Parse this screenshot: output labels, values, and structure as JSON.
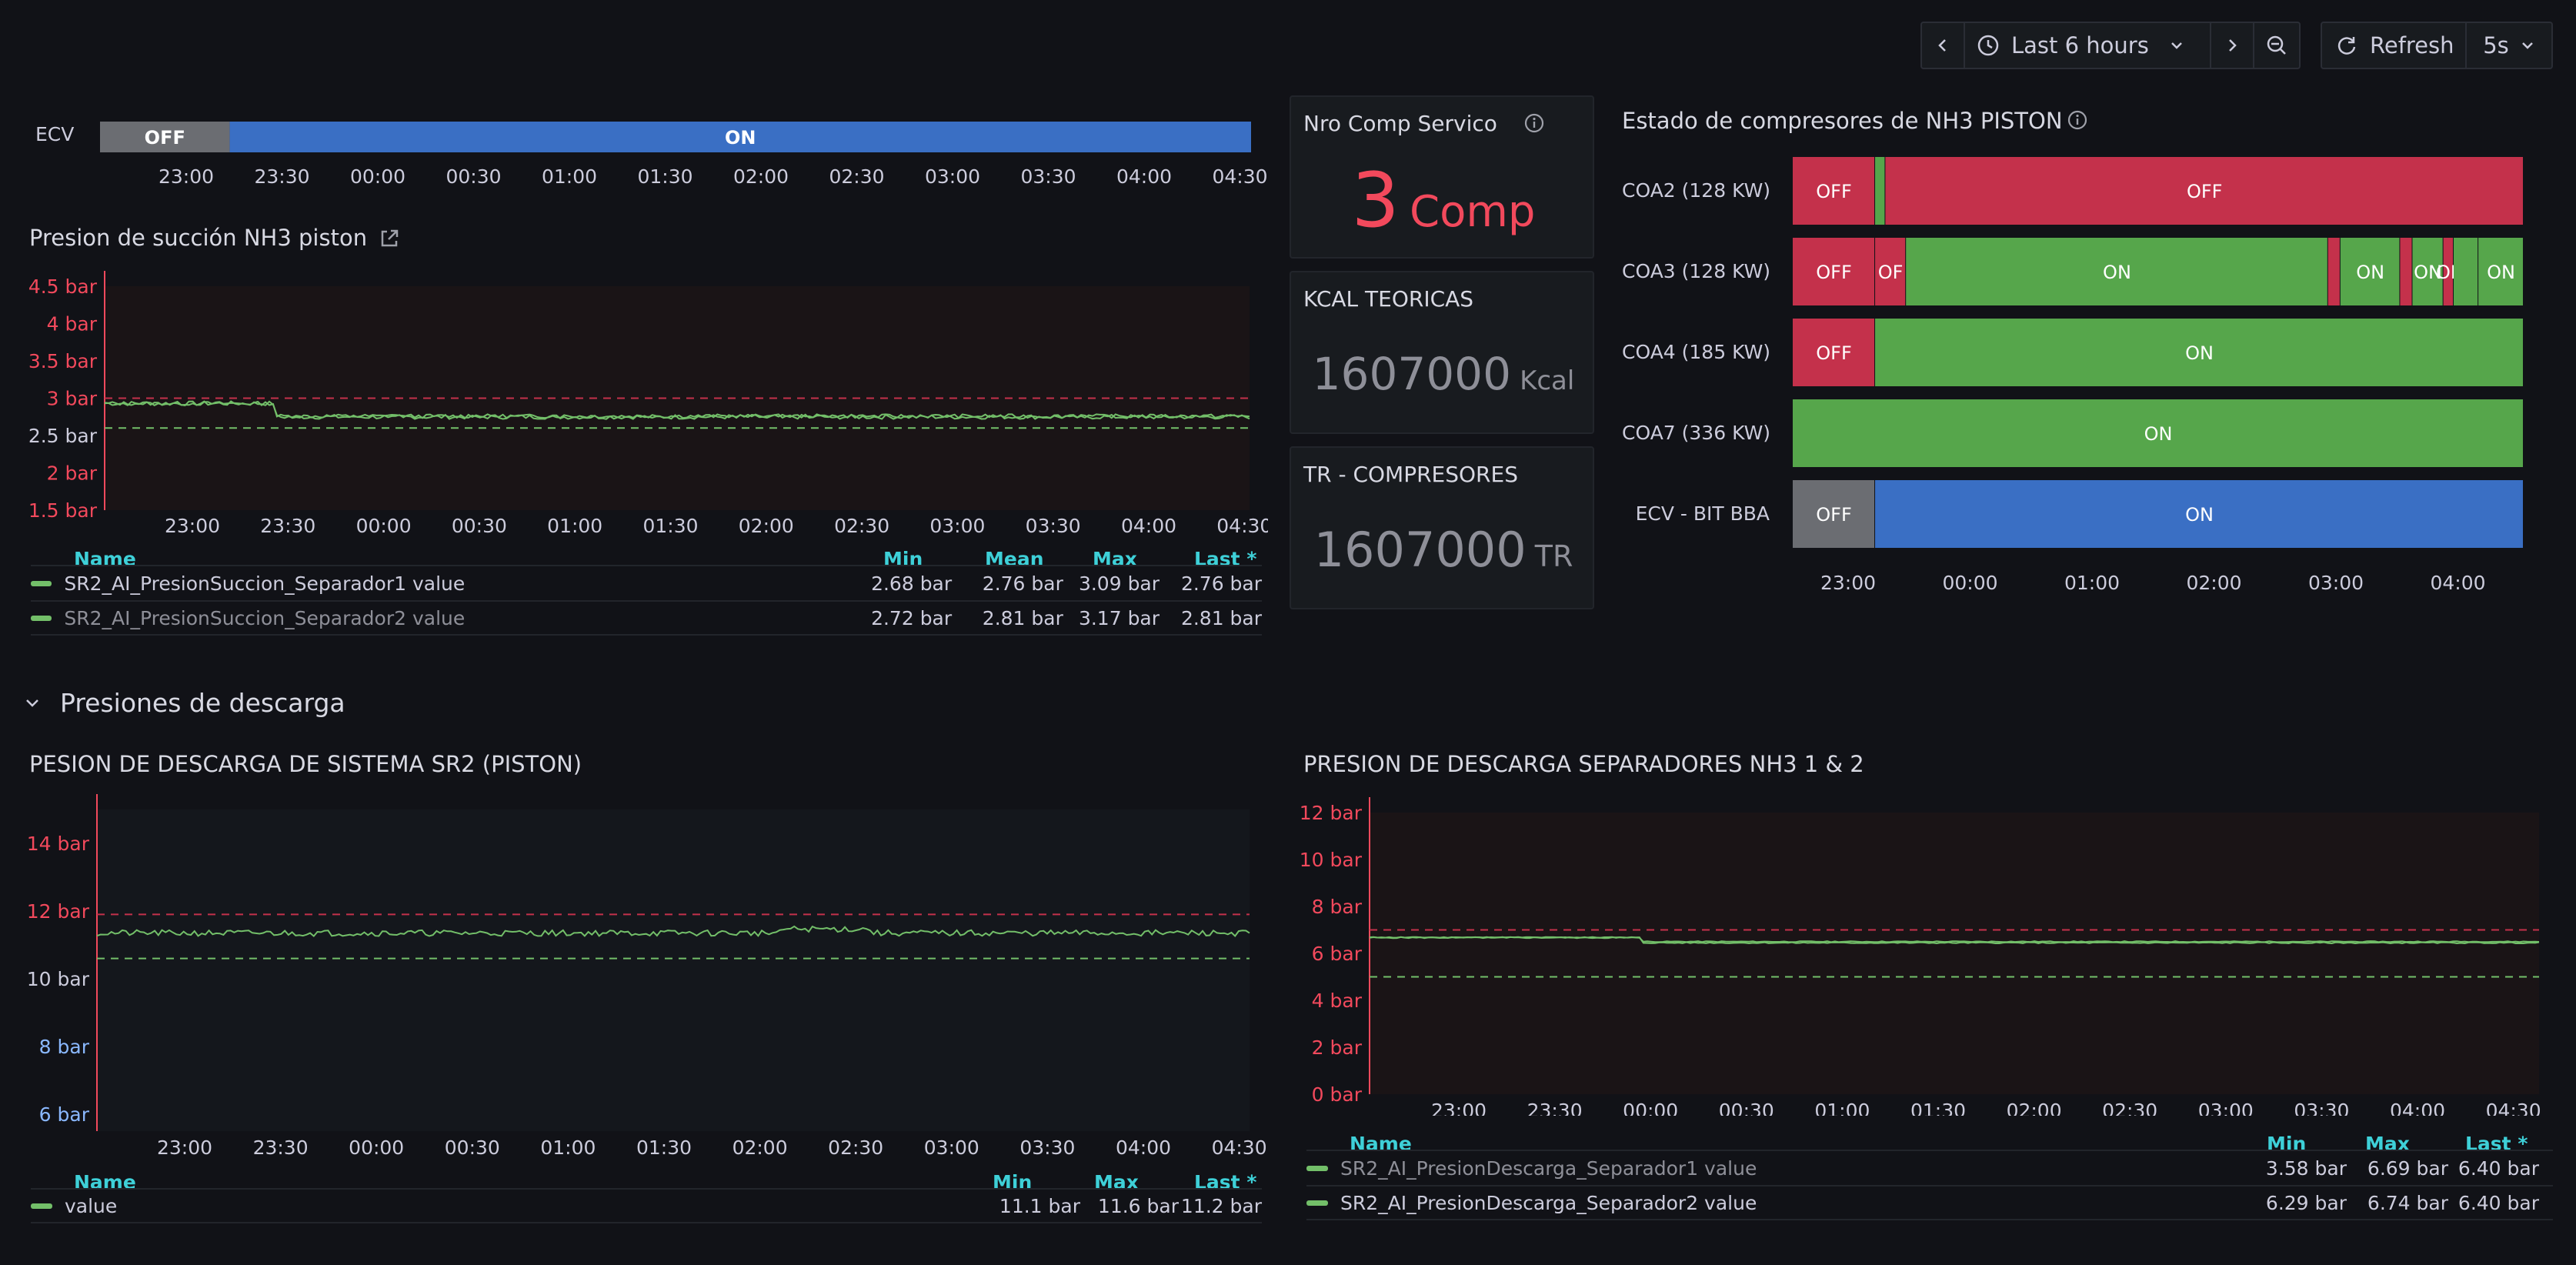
{
  "toolbar": {
    "time_range_label": "Last 6 hours",
    "refresh_label": "Refresh",
    "refresh_interval": "5s"
  },
  "ecv_timeline": {
    "label": "ECV",
    "segments": [
      {
        "state": "OFF",
        "from": "22:40",
        "to": "23:20"
      },
      {
        "state": "ON",
        "from": "23:20",
        "to": "04:35"
      }
    ],
    "ticks": [
      "23:00",
      "23:30",
      "00:00",
      "00:30",
      "01:00",
      "01:30",
      "02:00",
      "02:30",
      "03:00",
      "03:30",
      "04:00",
      "04:30"
    ]
  },
  "suction_panel": {
    "title": "Presion de succión NH3 piston",
    "y_ticks": [
      "4.5 bar",
      "4 bar",
      "3.5 bar",
      "3 bar",
      "2.5 bar",
      "2 bar",
      "1.5 bar"
    ],
    "x_ticks": [
      "23:00",
      "23:30",
      "00:00",
      "00:30",
      "01:00",
      "01:30",
      "02:00",
      "02:30",
      "03:00",
      "03:30",
      "04:00",
      "04:30"
    ],
    "legend_headers": {
      "name": "Name",
      "min": "Min",
      "mean": "Mean",
      "max": "Max",
      "last": "Last *"
    },
    "legend": [
      {
        "name": "SR2_AI_PresionSuccion_Separador1 value",
        "min": "2.68 bar",
        "mean": "2.76 bar",
        "max": "3.09 bar",
        "last": "2.76 bar"
      },
      {
        "name": "SR2_AI_PresionSuccion_Separador2 value",
        "min": "2.72 bar",
        "mean": "2.81 bar",
        "max": "3.17 bar",
        "last": "2.81 bar"
      }
    ]
  },
  "stat_comp": {
    "title": "Nro Comp Servico",
    "value": "3",
    "unit": "Comp",
    "color": "#f2495c"
  },
  "stat_kcal": {
    "title": "KCAL TEORICAS",
    "value": "1607000",
    "unit": "Kcal"
  },
  "stat_tr": {
    "title": "TR - COMPRESORES",
    "value": "1607000",
    "unit": "TR"
  },
  "state_panel": {
    "title": "Estado de compresores de NH3 PISTON",
    "x_ticks": [
      "23:00",
      "00:00",
      "01:00",
      "02:00",
      "03:00",
      "04:00"
    ],
    "rows": [
      {
        "label": "COA2 (128 KW)",
        "segments": [
          {
            "state": "OFF",
            "from": "22:40",
            "to": "23:20",
            "text": "OFF"
          },
          {
            "state": "ON",
            "from": "23:20",
            "to": "23:25",
            "text": ""
          },
          {
            "state": "OFF",
            "from": "23:25",
            "to": "04:35",
            "text": "OFF"
          }
        ]
      },
      {
        "label": "COA3 (128 KW)",
        "segments": [
          {
            "state": "OFF",
            "from": "22:40",
            "to": "23:20",
            "text": "OFF"
          },
          {
            "state": "OFF",
            "from": "23:20",
            "to": "23:35",
            "text": "OF"
          },
          {
            "state": "ON",
            "from": "23:35",
            "to": "03:00",
            "text": "ON"
          },
          {
            "state": "OFF",
            "from": "03:00",
            "to": "03:06",
            "text": ""
          },
          {
            "state": "ON",
            "from": "03:06",
            "to": "03:35",
            "text": "ON"
          },
          {
            "state": "OFF",
            "from": "03:35",
            "to": "03:41",
            "text": ""
          },
          {
            "state": "ON",
            "from": "03:41",
            "to": "03:56",
            "text": "ON"
          },
          {
            "state": "OFF",
            "from": "03:56",
            "to": "04:01",
            "text": "OF"
          },
          {
            "state": "ON",
            "from": "04:01",
            "to": "04:13",
            "text": ""
          },
          {
            "state": "ON",
            "from": "04:13",
            "to": "04:35",
            "text": "ON"
          }
        ]
      },
      {
        "label": "COA4 (185 KW)",
        "segments": [
          {
            "state": "OFF",
            "from": "22:40",
            "to": "23:20",
            "text": "OFF"
          },
          {
            "state": "ON",
            "from": "23:20",
            "to": "04:35",
            "text": "ON"
          }
        ]
      },
      {
        "label": "COA7 (336 KW)",
        "segments": [
          {
            "state": "ON",
            "from": "22:40",
            "to": "04:35",
            "text": "ON"
          }
        ]
      },
      {
        "label": "ECV - BIT BBA",
        "segments": [
          {
            "state": "NONE",
            "from": "22:40",
            "to": "23:20",
            "text": "OFF"
          },
          {
            "state": "BLUE",
            "from": "23:20",
            "to": "04:35",
            "text": "ON"
          }
        ]
      }
    ]
  },
  "row_header": {
    "title": "Presiones de descarga"
  },
  "discharge_sr2": {
    "title": "PESION DE DESCARGA DE SISTEMA SR2 (PISTON)",
    "y_ticks": [
      "14 bar",
      "12 bar",
      "10 bar",
      "8 bar",
      "6 bar"
    ],
    "x_ticks": [
      "23:00",
      "23:30",
      "00:00",
      "00:30",
      "01:00",
      "01:30",
      "02:00",
      "02:30",
      "03:00",
      "03:30",
      "04:00",
      "04:30"
    ],
    "legend_headers": {
      "name": "Name",
      "min": "Min",
      "max": "Max",
      "last": "Last *"
    },
    "legend": [
      {
        "name": "value",
        "min": "11.1 bar",
        "max": "11.6 bar",
        "last": "11.2 bar"
      }
    ]
  },
  "discharge_sep": {
    "title": "PRESION DE DESCARGA SEPARADORES NH3 1 & 2",
    "y_ticks": [
      "12 bar",
      "10 bar",
      "8 bar",
      "6 bar",
      "4 bar",
      "2 bar",
      "0 bar"
    ],
    "x_ticks": [
      "23:00",
      "23:30",
      "00:00",
      "00:30",
      "01:00",
      "01:30",
      "02:00",
      "02:30",
      "03:00",
      "03:30",
      "04:00",
      "04:30"
    ],
    "legend_headers": {
      "name": "Name",
      "min": "Min",
      "max": "Max",
      "last": "Last *"
    },
    "legend": [
      {
        "name": "SR2_AI_PresionDescarga_Separador1 value",
        "min": "3.58 bar",
        "max": "6.69 bar",
        "last": "6.40 bar"
      },
      {
        "name": "SR2_AI_PresionDescarga_Separador2 value",
        "min": "6.29 bar",
        "max": "6.74 bar",
        "last": "6.40 bar"
      }
    ]
  },
  "colors": {
    "ok": "#56a64b",
    "alert": "#c4314b",
    "neutral": "#6b6d72",
    "blue": "#3a6fc4",
    "series": "#73bf69",
    "threshold_red": "#f2495c",
    "axis_red": "#f2495c",
    "axis_blue": "#8ab8ff"
  }
}
